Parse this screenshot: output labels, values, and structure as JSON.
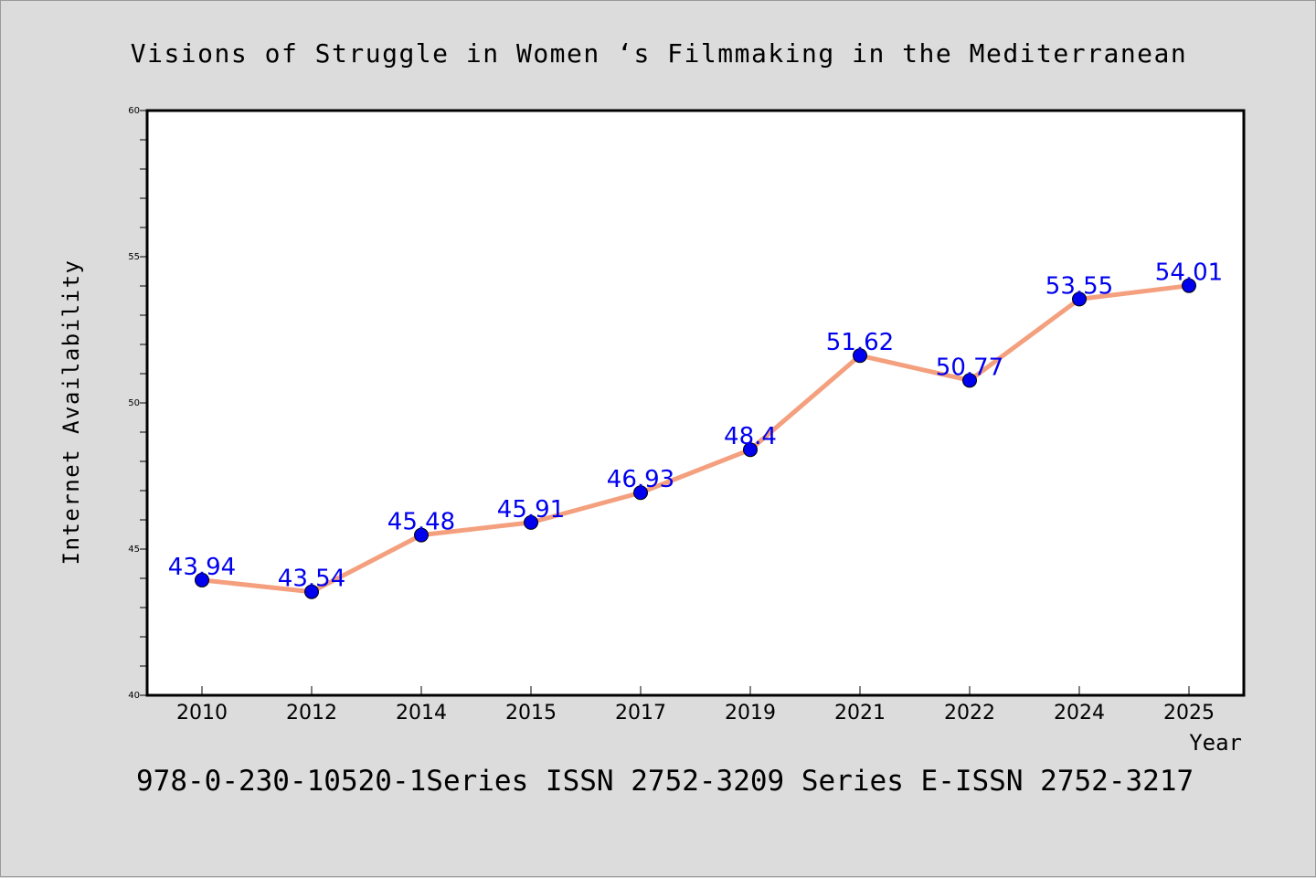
{
  "chart_data": {
    "type": "line",
    "title": "Visions of Struggle in Women ‘s Filmmaking in the Mediterranean",
    "xlabel": "Year",
    "ylabel": "Internet Availability",
    "categories": [
      "2010",
      "2012",
      "2014",
      "2015",
      "2017",
      "2019",
      "2021",
      "2022",
      "2024",
      "2025"
    ],
    "series": [
      {
        "values": [
          43.94,
          43.54,
          45.48,
          45.91,
          46.93,
          48.4,
          51.62,
          50.77,
          53.55,
          54.01
        ],
        "data_labels": [
          "43.94",
          "43.54",
          "45.48",
          "45.91",
          "46.93",
          "48.4",
          "51.62",
          "50.77",
          "53.55",
          "54.01"
        ],
        "line_color": "#f4a07e",
        "marker_color": "#0000ee",
        "label_color": "#0000ee"
      }
    ],
    "ylim": [
      40,
      60
    ],
    "yticks": [
      "40",
      "45",
      "50",
      "55",
      "60"
    ],
    "grid": false,
    "legend": "none"
  },
  "footer": "978-0-230-10520-1Series ISSN 2752-3209 Series E-ISSN 2752-3217",
  "colors": {
    "background": "#dcdcdc",
    "plot_background": "#ffffff",
    "axis": "#000000"
  }
}
